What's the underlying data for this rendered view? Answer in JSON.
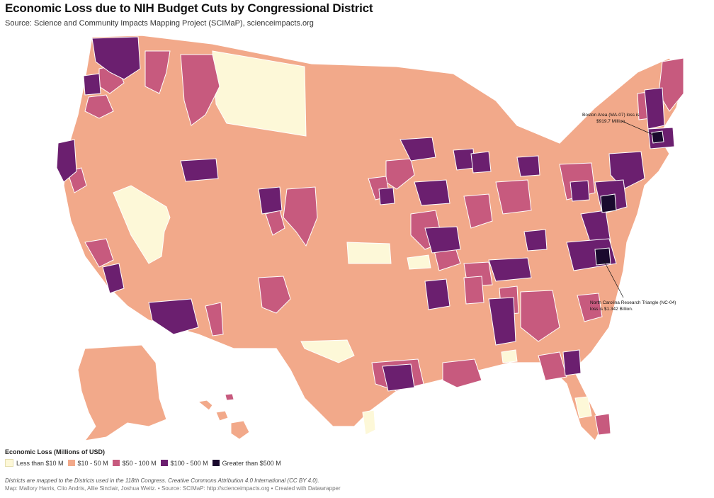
{
  "header": {
    "title": "Economic Loss due to NIH Budget Cuts by Congressional District",
    "subtitle": "Source: Science and Community Impacts Mapping Project (SCIMaP), scienceimpacts.org"
  },
  "legend": {
    "title": "Economic Loss (Millions of USD)",
    "items": [
      {
        "label": "Less than $10 M",
        "color": "#fdf8d8"
      },
      {
        "label": "$10 - 50 M",
        "color": "#f2a98a"
      },
      {
        "label": "$50 - 100 M",
        "color": "#c75a7e"
      },
      {
        "label": "$100 - 500 M",
        "color": "#6b1f6f"
      },
      {
        "label": "Greater than $500 M",
        "color": "#1a0a2e"
      }
    ]
  },
  "annotations": {
    "boston_line1": "Boston Area (MA-07) loss is",
    "boston_line2": "$919.7 Million.",
    "nc_line1": "North Carolina Research Triangle (NC-04)",
    "nc_line2": "loss is $1.342 Billion."
  },
  "notes": {
    "line1": "Districts are mapped to the Districts used in the 118th Congress. Creative Commons Attribution 4.0 International (CC BY 4.0).",
    "line2": "Map: Mallory Harris, Clio Andris, Allie Sinclair, Joshua Weitz. • Source: SCIMaP: http://scienceimpacts.org • Created with Datawrapper"
  },
  "colors": {
    "low": "#fdf8d8",
    "mid_low": "#f2a98a",
    "mid": "#c75a7e",
    "high": "#6b1f6f",
    "top": "#1a0a2e",
    "border": "#ffffff"
  }
}
